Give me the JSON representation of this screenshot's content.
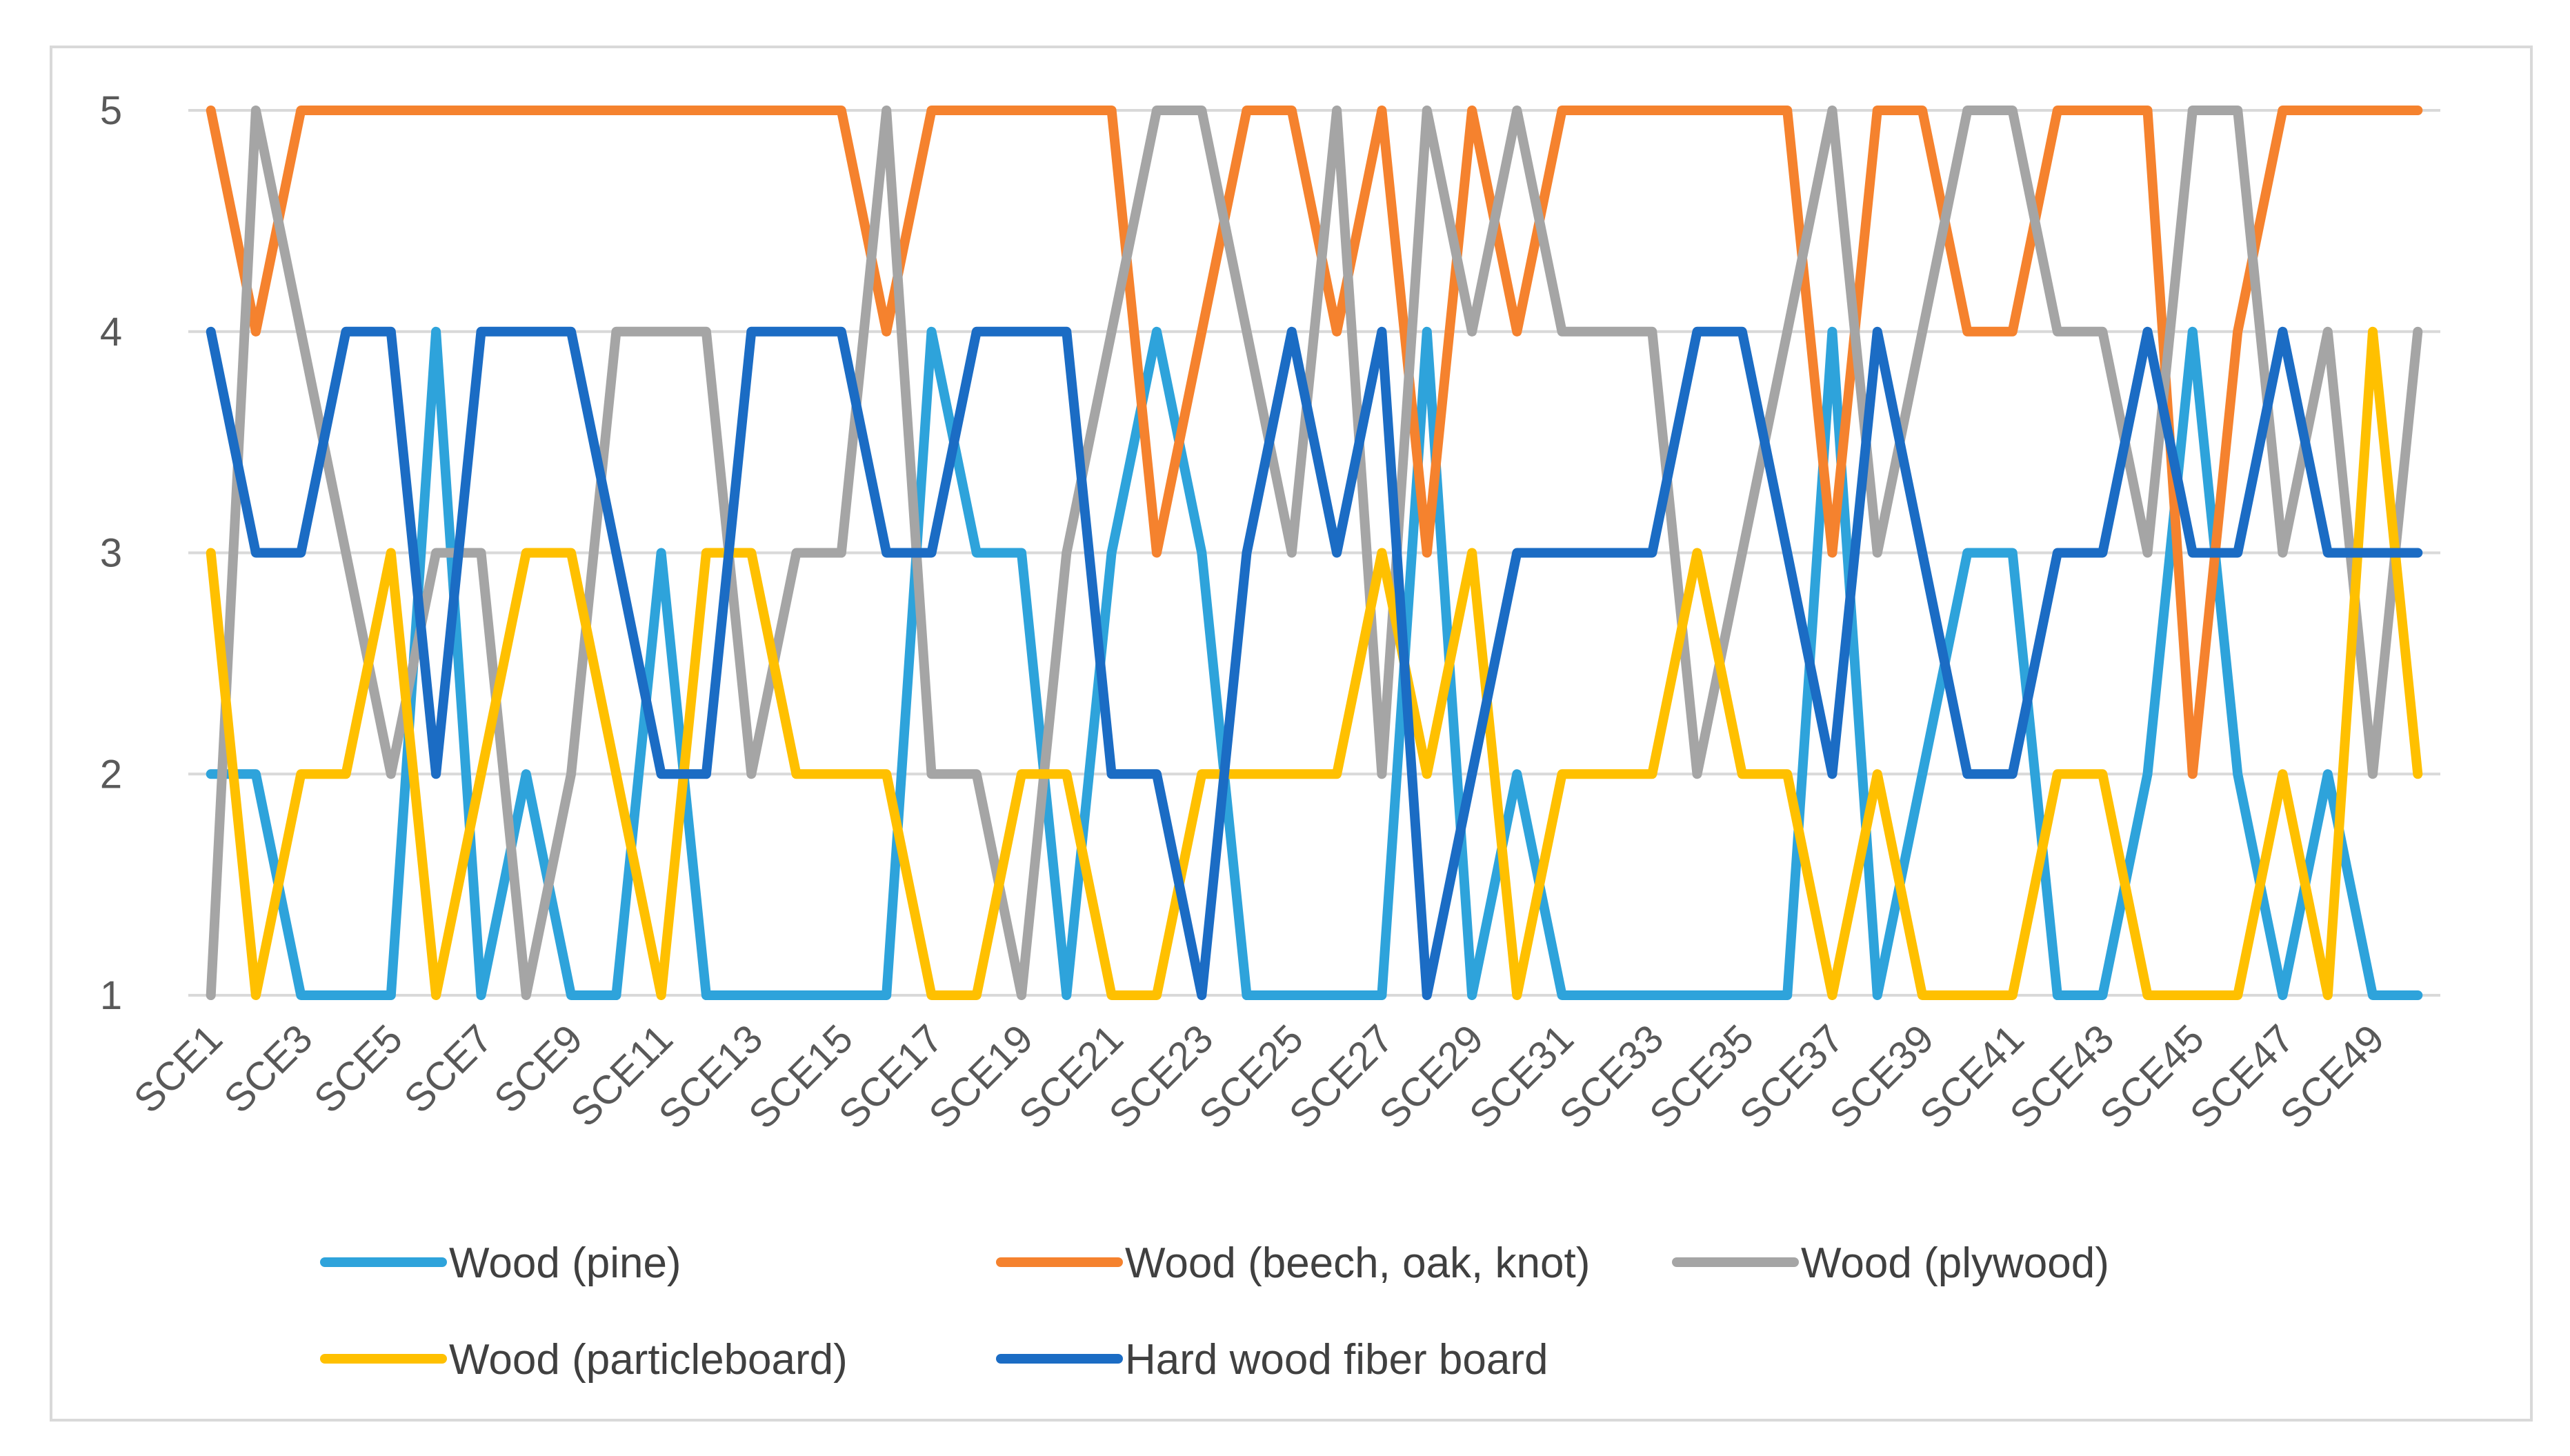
{
  "chart_data": {
    "type": "line",
    "title": "",
    "xlabel": "",
    "ylabel": "",
    "ylim": [
      1,
      5
    ],
    "yticks": [
      1,
      2,
      3,
      4,
      5
    ],
    "grid": true,
    "legend_position": "bottom",
    "categories": [
      "SCE1",
      "SCE2",
      "SCE3",
      "SCE4",
      "SCE5",
      "SCE6",
      "SCE7",
      "SCE8",
      "SCE9",
      "SCE10",
      "SCE11",
      "SCE12",
      "SCE13",
      "SCE14",
      "SCE15",
      "SCE16",
      "SCE17",
      "SCE18",
      "SCE19",
      "SCE20",
      "SCE21",
      "SCE22",
      "SCE23",
      "SCE24",
      "SCE25",
      "SCE26",
      "SCE27",
      "SCE28",
      "SCE29",
      "SCE30",
      "SCE31",
      "SCE32",
      "SCE33",
      "SCE34",
      "SCE35",
      "SCE36",
      "SCE37",
      "SCE38",
      "SCE39",
      "SCE40",
      "SCE41",
      "SCE42",
      "SCE43",
      "SCE44",
      "SCE45",
      "SCE46",
      "SCE47",
      "SCE48",
      "SCE49",
      "SCE50"
    ],
    "x_tick_labels_shown": [
      "SCE1",
      "SCE3",
      "SCE5",
      "SCE7",
      "SCE9",
      "SCE11",
      "SCE13",
      "SCE15",
      "SCE17",
      "SCE19",
      "SCE21",
      "SCE23",
      "SCE25",
      "SCE27",
      "SCE29",
      "SCE31",
      "SCE33",
      "SCE35",
      "SCE37",
      "SCE39",
      "SCE41",
      "SCE43",
      "SCE45",
      "SCE47",
      "SCE49"
    ],
    "series": [
      {
        "name": "Wood (pine)",
        "color": "#2EA3DB",
        "values": [
          2,
          2,
          1,
          1,
          1,
          4,
          1,
          2,
          1,
          1,
          3,
          1,
          1,
          1,
          1,
          1,
          4,
          3,
          3,
          1,
          3,
          4,
          3,
          1,
          1,
          1,
          1,
          4,
          1,
          2,
          1,
          1,
          1,
          1,
          1,
          1,
          4,
          1,
          2,
          3,
          3,
          1,
          1,
          2,
          4,
          2,
          1,
          2,
          1,
          1
        ]
      },
      {
        "name": "Wood (beech, oak, knot)",
        "color": "#F5822E",
        "values": [
          5,
          4,
          5,
          5,
          5,
          5,
          5,
          5,
          5,
          5,
          5,
          5,
          5,
          5,
          5,
          4,
          5,
          5,
          5,
          5,
          5,
          3,
          4,
          5,
          5,
          4,
          5,
          3,
          5,
          4,
          5,
          5,
          5,
          5,
          5,
          5,
          3,
          5,
          5,
          4,
          4,
          5,
          5,
          5,
          2,
          4,
          5,
          5,
          5,
          5
        ]
      },
      {
        "name": "Wood (plywood)",
        "color": "#A5A5A5",
        "values": [
          1,
          5,
          4,
          3,
          2,
          3,
          3,
          1,
          2,
          4,
          4,
          4,
          2,
          3,
          3,
          5,
          2,
          2,
          1,
          3,
          4,
          5,
          5,
          4,
          3,
          5,
          2,
          5,
          4,
          5,
          4,
          4,
          4,
          2,
          3,
          4,
          5,
          3,
          4,
          5,
          5,
          4,
          4,
          3,
          5,
          5,
          3,
          4,
          2,
          4
        ]
      },
      {
        "name": "Wood (particleboard)",
        "color": "#FFC000",
        "values": [
          3,
          1,
          2,
          2,
          3,
          1,
          2,
          3,
          3,
          2,
          1,
          3,
          3,
          2,
          2,
          2,
          1,
          1,
          2,
          2,
          1,
          1,
          2,
          2,
          2,
          2,
          3,
          2,
          3,
          1,
          2,
          2,
          2,
          3,
          2,
          2,
          1,
          2,
          1,
          1,
          1,
          2,
          2,
          1,
          1,
          1,
          2,
          1,
          4,
          2
        ]
      },
      {
        "name": "Hard wood fiber board",
        "color": "#1B6CC4",
        "values": [
          4,
          3,
          3,
          4,
          4,
          2,
          4,
          4,
          4,
          3,
          2,
          2,
          4,
          4,
          4,
          3,
          3,
          4,
          4,
          4,
          2,
          2,
          1,
          3,
          4,
          3,
          4,
          1,
          2,
          3,
          3,
          3,
          3,
          4,
          4,
          3,
          2,
          4,
          3,
          2,
          2,
          3,
          3,
          4,
          3,
          3,
          4,
          3,
          3,
          3
        ]
      }
    ]
  }
}
